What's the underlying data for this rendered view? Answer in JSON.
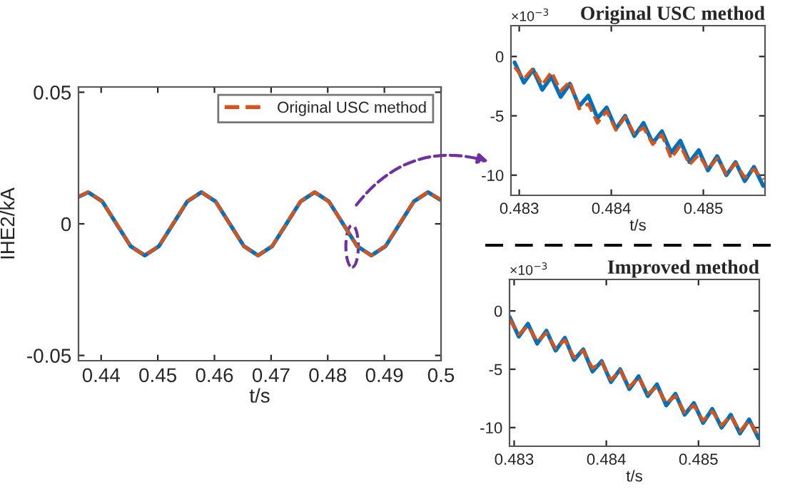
{
  "chart_data": [
    {
      "type": "line",
      "xlabel": "t/s",
      "ylabel": "IHE2/kA",
      "xlim": [
        0.436,
        0.5
      ],
      "ylim": [
        -0.052,
        0.052
      ],
      "xticks": [
        0.44,
        0.45,
        0.46,
        0.47,
        0.48,
        0.49,
        0.5
      ],
      "yticks": [
        -0.05,
        0,
        0.05
      ],
      "legend": "top right",
      "grid": false,
      "x": [
        0.436,
        0.4377,
        0.4402,
        0.4427,
        0.4452,
        0.4477,
        0.4502,
        0.4527,
        0.4552,
        0.4577,
        0.4602,
        0.4627,
        0.4652,
        0.4677,
        0.4702,
        0.4727,
        0.4752,
        0.4777,
        0.4802,
        0.4827,
        0.4852,
        0.4877,
        0.4902,
        0.4927,
        0.4952,
        0.4977,
        0.5
      ],
      "series": [
        {
          "color": "#0072bd",
          "line_style": "solid",
          "values": [
            0.0103,
            0.012,
            0.0085,
            0,
            -0.0085,
            -0.012,
            -0.0085,
            0,
            0.0085,
            0.012,
            0.0085,
            0,
            -0.0085,
            -0.012,
            -0.0085,
            0,
            0.0085,
            0.012,
            0.0085,
            0,
            -0.0085,
            -0.012,
            -0.0085,
            0,
            0.0085,
            0.012,
            0.009
          ]
        },
        {
          "name": "Original USC method",
          "color": "#d95319",
          "line_style": "dashed",
          "values": [
            0.0104,
            0.0121,
            0.0084,
            0.0001,
            -0.0086,
            -0.0121,
            -0.0084,
            0.0001,
            0.0086,
            0.0121,
            0.0084,
            -0.0001,
            -0.0086,
            -0.0121,
            -0.0084,
            0.0001,
            0.0086,
            0.0121,
            0.0084,
            0,
            -0.0086,
            -0.0121,
            -0.0084,
            0.0001,
            0.0086,
            0.0121,
            0.0091
          ]
        }
      ]
    },
    {
      "type": "line",
      "title": "Original USC method",
      "xlabel": "t/s",
      "xlim": [
        0.48291,
        0.48567
      ],
      "ylim": [
        -11.7,
        2.6
      ],
      "xticks": [
        0.483,
        0.484,
        0.485
      ],
      "yticks": [
        -10,
        -5,
        0
      ],
      "grid": false,
      "annotations": [
        "×10$^{−3}$"
      ],
      "x": [
        0.48295,
        0.48305,
        0.48315,
        0.48325,
        0.48335,
        0.48345,
        0.48355,
        0.48365,
        0.48375,
        0.48385,
        0.48395,
        0.48405,
        0.48415,
        0.48425,
        0.48435,
        0.48445,
        0.48455,
        0.48465,
        0.48475,
        0.48485,
        0.48495,
        0.48505,
        0.48515,
        0.48525,
        0.48535,
        0.48545,
        0.48555,
        0.48565
      ],
      "series": [
        {
          "color": "#0072bd",
          "line_style": "solid",
          "values": [
            -0.5,
            -2.2,
            -1.1,
            -2.8,
            -1.7,
            -3.4,
            -2.3,
            -4.2,
            -3.3,
            -5.2,
            -4.3,
            -6.1,
            -5.0,
            -6.7,
            -5.6,
            -7.3,
            -6.3,
            -8.1,
            -7.1,
            -8.9,
            -7.9,
            -9.6,
            -8.4,
            -10.0,
            -8.9,
            -10.5,
            -9.3,
            -10.9
          ]
        },
        {
          "color": "#d95319",
          "line_style": "dashed",
          "values": [
            -0.9,
            -1.9,
            -1.0,
            -2.4,
            -1.3,
            -2.9,
            -2.1,
            -4.4,
            -4.0,
            -5.6,
            -4.6,
            -6.2,
            -5.1,
            -6.5,
            -6.0,
            -7.4,
            -6.6,
            -8.6,
            -7.5,
            -9.1,
            -8.3,
            -9.5,
            -8.6,
            -9.9,
            -9.0,
            -10.2,
            -9.5,
            -10.4
          ]
        }
      ]
    },
    {
      "type": "line",
      "title": "Improved method",
      "xlabel": "t/s",
      "xlim": [
        0.48295,
        0.48566
      ],
      "ylim": [
        -11.6,
        2.7
      ],
      "xticks": [
        0.483,
        0.484,
        0.485
      ],
      "yticks": [
        -10,
        -5,
        0
      ],
      "grid": false,
      "annotations": [
        "×10$^{−3}$"
      ],
      "x": [
        0.48295,
        0.48305,
        0.48315,
        0.48325,
        0.48335,
        0.48345,
        0.48355,
        0.48365,
        0.48375,
        0.48385,
        0.48395,
        0.48405,
        0.48415,
        0.48425,
        0.48435,
        0.48445,
        0.48455,
        0.48465,
        0.48475,
        0.48485,
        0.48495,
        0.48505,
        0.48515,
        0.48525,
        0.48535,
        0.48545,
        0.48555,
        0.48565
      ],
      "series": [
        {
          "color": "#0072bd",
          "line_style": "solid",
          "values": [
            -0.5,
            -2.2,
            -1.1,
            -2.8,
            -1.7,
            -3.4,
            -2.3,
            -4.2,
            -3.3,
            -5.2,
            -4.3,
            -6.1,
            -5.0,
            -6.7,
            -5.6,
            -7.3,
            -6.3,
            -8.1,
            -7.1,
            -8.9,
            -7.9,
            -9.6,
            -8.4,
            -10.0,
            -8.9,
            -10.5,
            -9.3,
            -10.9
          ]
        },
        {
          "color": "#d95319",
          "line_style": "dashed",
          "values": [
            -0.7,
            -2.0,
            -1.3,
            -2.6,
            -1.9,
            -3.2,
            -2.5,
            -4.0,
            -3.4,
            -4.9,
            -4.4,
            -5.9,
            -5.1,
            -6.5,
            -5.7,
            -7.1,
            -6.5,
            -7.9,
            -7.3,
            -8.7,
            -8.1,
            -9.4,
            -8.6,
            -9.8,
            -9.0,
            -10.3,
            -9.4,
            -10.7
          ]
        }
      ]
    }
  ]
}
